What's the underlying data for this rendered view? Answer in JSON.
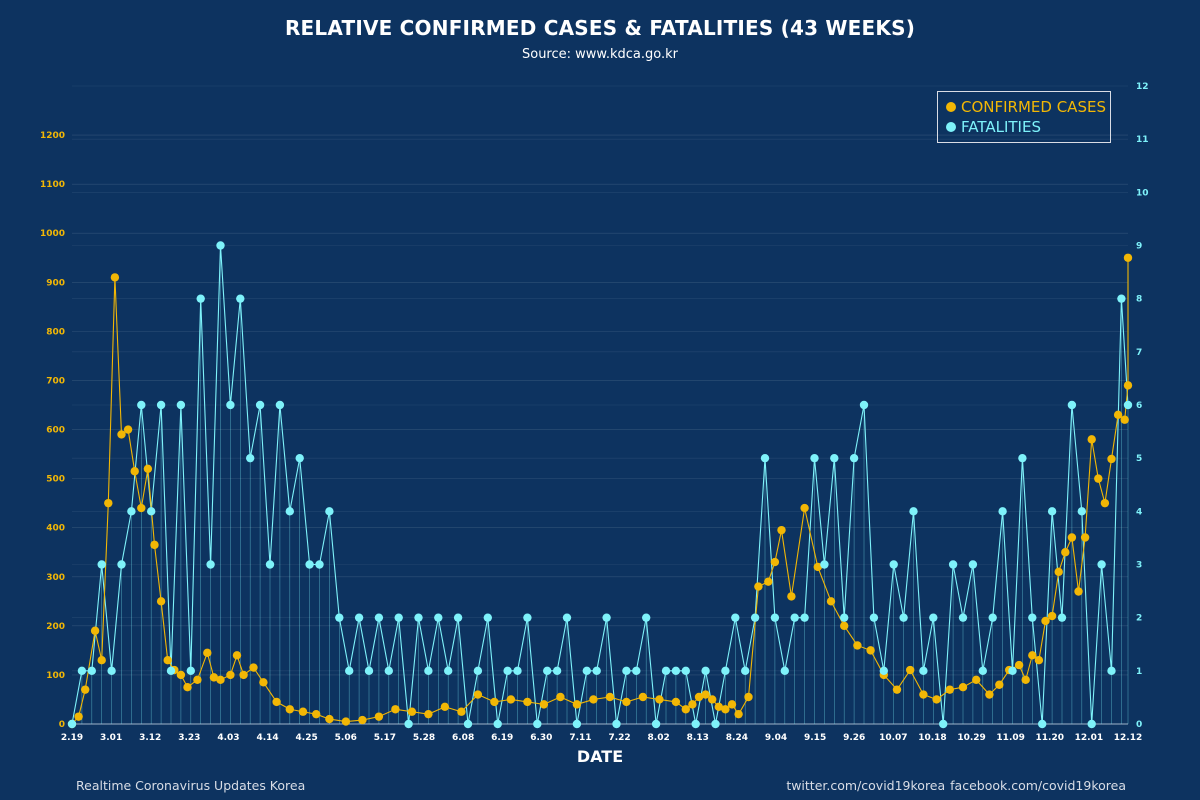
{
  "title": "RELATIVE CONFIRMED CASES & FATALITIES (43 WEEKS)",
  "subtitle": "Source: www.kdca.go.kr",
  "footer": {
    "left": "Realtime Coronavirus Updates Korea",
    "right": "twitter.com/covid19korea  facebook.com/covid19korea"
  },
  "colors": {
    "background": "#0d3360",
    "confirmed": "#f2b705",
    "fatalities": "#7ef2fa",
    "grid": "#3e5f82"
  },
  "chart_data": {
    "type": "line",
    "title": "RELATIVE CONFIRMED CASES & FATALITIES (43 WEEKS)",
    "xlabel": "DATE",
    "x_tick_labels": [
      "2.19",
      "3.01",
      "3.12",
      "3.23",
      "4.03",
      "4.14",
      "4.25",
      "5.06",
      "5.17",
      "5.28",
      "6.08",
      "6.19",
      "6.30",
      "7.11",
      "7.22",
      "8.02",
      "8.13",
      "8.24",
      "9.04",
      "9.15",
      "9.26",
      "10.07",
      "10.18",
      "10.29",
      "11.09",
      "11.20",
      "12.01",
      "12.12"
    ],
    "y_left": {
      "ylim": [
        0,
        1300
      ],
      "ticks": [
        0,
        100,
        200,
        300,
        400,
        500,
        600,
        700,
        800,
        900,
        1000,
        1100,
        1200
      ]
    },
    "y_right": {
      "ylim": [
        0,
        12
      ],
      "ticks": [
        0,
        1,
        2,
        3,
        4,
        5,
        6,
        7,
        8,
        9,
        10,
        11,
        12
      ]
    },
    "legend_position": "top-right",
    "legend": [
      "CONFIRMED CASES",
      "FATALITIES"
    ],
    "series": [
      {
        "name": "CONFIRMED CASES",
        "axis": "left",
        "days": [
          0,
          2,
          4,
          7,
          9,
          11,
          13,
          15,
          17,
          19,
          21,
          23,
          25,
          27,
          29,
          31,
          33,
          35,
          38,
          41,
          43,
          45,
          48,
          50,
          52,
          55,
          58,
          62,
          66,
          70,
          74,
          78,
          83,
          88,
          93,
          98,
          103,
          108,
          113,
          118,
          123,
          128,
          133,
          138,
          143,
          148,
          153,
          158,
          163,
          168,
          173,
          178,
          183,
          186,
          188,
          190,
          192,
          194,
          196,
          198,
          200,
          202,
          205,
          208,
          211,
          213,
          215,
          218,
          222,
          226,
          230,
          234,
          238,
          242,
          246,
          250,
          254,
          258,
          262,
          266,
          270,
          274,
          278,
          281,
          284,
          287,
          289,
          291,
          293,
          295,
          297,
          299,
          301,
          303,
          305,
          307,
          309,
          311,
          313,
          315,
          317,
          319,
          320
        ],
        "values": [
          0,
          15,
          70,
          190,
          130,
          450,
          910,
          590,
          600,
          515,
          440,
          520,
          365,
          250,
          130,
          110,
          100,
          75,
          90,
          145,
          95,
          90,
          100,
          140,
          100,
          115,
          85,
          45,
          30,
          25,
          20,
          10,
          5,
          8,
          15,
          30,
          25,
          20,
          35,
          25,
          60,
          45,
          50,
          45,
          40,
          55,
          40,
          50,
          55,
          45,
          55,
          50,
          45,
          30,
          40,
          55,
          60,
          50,
          35,
          30,
          40,
          20,
          55,
          280,
          290,
          330,
          395,
          260,
          440,
          320,
          250,
          200,
          160,
          150,
          100,
          70,
          110,
          60,
          50,
          70,
          75,
          90,
          60,
          80,
          110,
          120,
          90,
          140,
          130,
          210,
          220,
          310,
          350,
          380,
          270,
          380,
          580,
          500,
          450,
          540,
          630,
          620,
          690
        ],
        "special_points": [
          {
            "day": 320,
            "value": 950
          }
        ]
      },
      {
        "name": "FATALITIES",
        "axis": "right",
        "days": [
          0,
          3,
          6,
          9,
          12,
          15,
          18,
          21,
          24,
          27,
          30,
          33,
          36,
          39,
          42,
          45,
          48,
          51,
          54,
          57,
          60,
          63,
          66,
          69,
          72,
          75,
          78,
          81,
          84,
          87,
          90,
          93,
          96,
          99,
          102,
          105,
          108,
          111,
          114,
          117,
          120,
          123,
          126,
          129,
          132,
          135,
          138,
          141,
          144,
          147,
          150,
          153,
          156,
          159,
          162,
          165,
          168,
          171,
          174,
          177,
          180,
          183,
          186,
          189,
          192,
          195,
          198,
          201,
          204,
          207,
          210,
          213,
          216,
          219,
          222,
          225,
          228,
          231,
          234,
          237,
          240,
          243,
          246,
          249,
          252,
          255,
          258,
          261,
          264,
          267,
          270,
          273,
          276,
          279,
          282,
          285,
          288,
          291,
          294,
          297,
          300,
          303,
          306,
          309,
          312,
          315,
          318,
          320
        ],
        "values": [
          0,
          1,
          1,
          3,
          1,
          3,
          4,
          6,
          4,
          6,
          1,
          6,
          1,
          8,
          3,
          9,
          6,
          8,
          5,
          6,
          3,
          6,
          4,
          5,
          3,
          3,
          4,
          2,
          1,
          2,
          1,
          2,
          1,
          2,
          0,
          2,
          1,
          2,
          1,
          2,
          0,
          1,
          2,
          0,
          1,
          1,
          2,
          0,
          1,
          1,
          2,
          0,
          1,
          1,
          2,
          0,
          1,
          1,
          2,
          0,
          1,
          1,
          1,
          0,
          1,
          0,
          1,
          2,
          1,
          2,
          5,
          2,
          1,
          2,
          2,
          5,
          3,
          5,
          2,
          5,
          6,
          2,
          1,
          3,
          2,
          4,
          1,
          2,
          0,
          3,
          2,
          3,
          1,
          2,
          4,
          1,
          5,
          2,
          0,
          4,
          2,
          6,
          4,
          0,
          3,
          1,
          8,
          6
        ],
        "special_points": []
      }
    ]
  }
}
